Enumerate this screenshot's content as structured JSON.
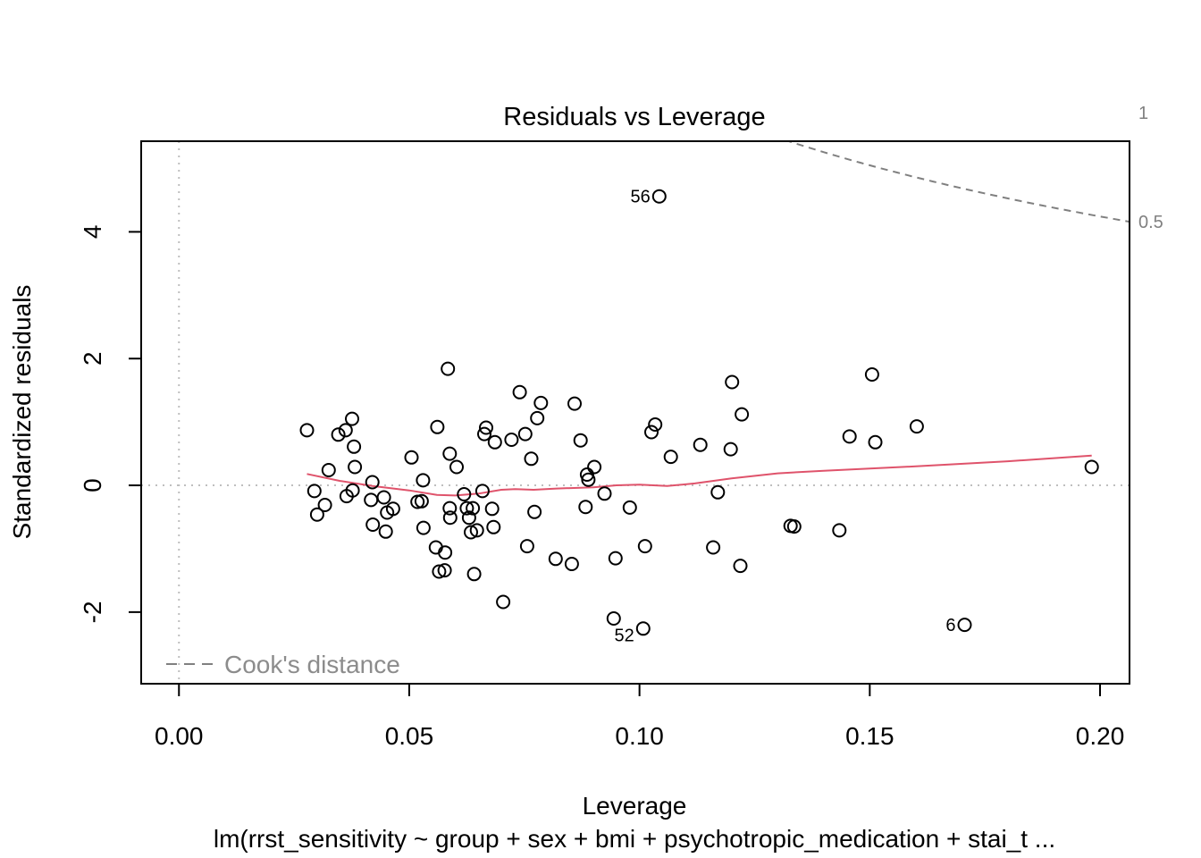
{
  "chart_data": {
    "type": "scatter",
    "title": "Residuals vs Leverage",
    "xlabel": "Leverage",
    "ylabel": "Standardized residuals",
    "subtitle": "lm(rrst_sensitivity ~ group + sex + bmi + psychotropic_medication + stai_t  ...",
    "xlim": [
      -0.0082,
      0.2064
    ],
    "ylim": [
      -3.13,
      5.43
    ],
    "x_ticks": [
      {
        "value": 0.0,
        "label": "0.00"
      },
      {
        "value": 0.05,
        "label": "0.05"
      },
      {
        "value": 0.1,
        "label": "0.10"
      },
      {
        "value": 0.15,
        "label": "0.15"
      },
      {
        "value": 0.2,
        "label": "0.20"
      }
    ],
    "y_ticks": [
      {
        "value": -2,
        "label": "-2"
      },
      {
        "value": 0,
        "label": "0"
      },
      {
        "value": 2,
        "label": "2"
      },
      {
        "value": 4,
        "label": "4"
      }
    ],
    "points": [
      [
        0.0278,
        0.87
      ],
      [
        0.0294,
        -0.09
      ],
      [
        0.03,
        -0.46
      ],
      [
        0.0317,
        -0.31
      ],
      [
        0.0325,
        0.24
      ],
      [
        0.0346,
        0.8
      ],
      [
        0.0362,
        0.87
      ],
      [
        0.0364,
        -0.17
      ],
      [
        0.0376,
        1.05
      ],
      [
        0.0377,
        -0.08
      ],
      [
        0.038,
        0.61
      ],
      [
        0.0382,
        0.29
      ],
      [
        0.0417,
        -0.23
      ],
      [
        0.042,
        0.05
      ],
      [
        0.0421,
        -0.62
      ],
      [
        0.0445,
        -0.19
      ],
      [
        0.0449,
        -0.73
      ],
      [
        0.0452,
        -0.43
      ],
      [
        0.0465,
        -0.37
      ],
      [
        0.0505,
        0.44
      ],
      [
        0.0518,
        -0.26
      ],
      [
        0.0527,
        -0.25
      ],
      [
        0.053,
        0.08
      ],
      [
        0.0531,
        -0.67
      ],
      [
        0.0558,
        -0.98
      ],
      [
        0.0561,
        0.92
      ],
      [
        0.0565,
        -1.36
      ],
      [
        0.0577,
        -1.34
      ],
      [
        0.0578,
        -1.06
      ],
      [
        0.0584,
        1.84
      ],
      [
        0.0588,
        0.5
      ],
      [
        0.0588,
        -0.36
      ],
      [
        0.0589,
        -0.51
      ],
      [
        0.0603,
        0.29
      ],
      [
        0.0619,
        -0.14
      ],
      [
        0.0625,
        -0.36
      ],
      [
        0.063,
        -0.51
      ],
      [
        0.0634,
        -0.74
      ],
      [
        0.0638,
        -0.36
      ],
      [
        0.0641,
        -1.4
      ],
      [
        0.0647,
        -0.71
      ],
      [
        0.0659,
        -0.09
      ],
      [
        0.0663,
        0.81
      ],
      [
        0.0667,
        0.91
      ],
      [
        0.068,
        -0.37
      ],
      [
        0.0683,
        -0.66
      ],
      [
        0.0686,
        0.68
      ],
      [
        0.0704,
        -1.84
      ],
      [
        0.0722,
        0.72
      ],
      [
        0.074,
        1.47
      ],
      [
        0.0752,
        0.81
      ],
      [
        0.0756,
        -0.96
      ],
      [
        0.0765,
        0.42
      ],
      [
        0.0772,
        -0.42
      ],
      [
        0.0778,
        1.06
      ],
      [
        0.0786,
        1.3
      ],
      [
        0.0818,
        -1.16
      ],
      [
        0.0853,
        -1.24
      ],
      [
        0.0859,
        1.29
      ],
      [
        0.0872,
        0.71
      ],
      [
        0.0883,
        -0.34
      ],
      [
        0.0886,
        0.17
      ],
      [
        0.0889,
        0.09
      ],
      [
        0.0902,
        0.29
      ],
      [
        0.0924,
        -0.13
      ],
      [
        0.0944,
        -2.1
      ],
      [
        0.0948,
        -1.15
      ],
      [
        0.0979,
        -0.35
      ],
      [
        0.1008,
        -2.26
      ],
      [
        0.1012,
        -0.96
      ],
      [
        0.1026,
        0.84
      ],
      [
        0.1034,
        0.96
      ],
      [
        0.1043,
        4.56
      ],
      [
        0.1068,
        0.45
      ],
      [
        0.1132,
        0.64
      ],
      [
        0.116,
        -0.98
      ],
      [
        0.117,
        -0.11
      ],
      [
        0.1198,
        0.57
      ],
      [
        0.1201,
        1.63
      ],
      [
        0.1219,
        -1.27
      ],
      [
        0.1222,
        1.12
      ],
      [
        0.1328,
        -0.64
      ],
      [
        0.1336,
        -0.65
      ],
      [
        0.1434,
        -0.71
      ],
      [
        0.1456,
        0.77
      ],
      [
        0.1505,
        1.75
      ],
      [
        0.1512,
        0.68
      ],
      [
        0.1602,
        0.93
      ],
      [
        0.1706,
        -2.2
      ],
      [
        0.1982,
        0.29
      ]
    ],
    "smoother": [
      [
        0.0278,
        0.18
      ],
      [
        0.035,
        0.07
      ],
      [
        0.042,
        -0.01
      ],
      [
        0.05,
        -0.08
      ],
      [
        0.056,
        -0.15
      ],
      [
        0.06,
        -0.16
      ],
      [
        0.065,
        -0.13
      ],
      [
        0.07,
        -0.07
      ],
      [
        0.073,
        -0.06
      ],
      [
        0.077,
        -0.07
      ],
      [
        0.082,
        -0.05
      ],
      [
        0.09,
        -0.03
      ],
      [
        0.095,
        0.0
      ],
      [
        0.1,
        0.01
      ],
      [
        0.106,
        -0.01
      ],
      [
        0.112,
        0.03
      ],
      [
        0.12,
        0.11
      ],
      [
        0.13,
        0.19
      ],
      [
        0.14,
        0.23
      ],
      [
        0.16,
        0.3
      ],
      [
        0.18,
        0.38
      ],
      [
        0.1982,
        0.47
      ]
    ],
    "point_labels": [
      {
        "text": "56",
        "x": 0.1043,
        "y": 4.56,
        "side": "left"
      },
      {
        "text": "52",
        "x": 0.1008,
        "y": -2.26,
        "side": "left"
      },
      {
        "text": "6",
        "x": 0.1706,
        "y": -2.2,
        "side": "left"
      }
    ],
    "cook_contours": [
      {
        "label": "1",
        "level": 1
      },
      {
        "label": "0.5",
        "level": 0.5
      }
    ],
    "legend": {
      "text": "Cook's distance",
      "position": "bottom-left"
    },
    "reference_lines": {
      "h": 0,
      "v": 0
    },
    "model_p": 9,
    "colors": {
      "points": "#000000",
      "smoother": "#DF536B",
      "cook": "#808080",
      "reference": "#BEBEBE",
      "legend_text": "#8C8C8C",
      "label_text": "#000000"
    }
  }
}
